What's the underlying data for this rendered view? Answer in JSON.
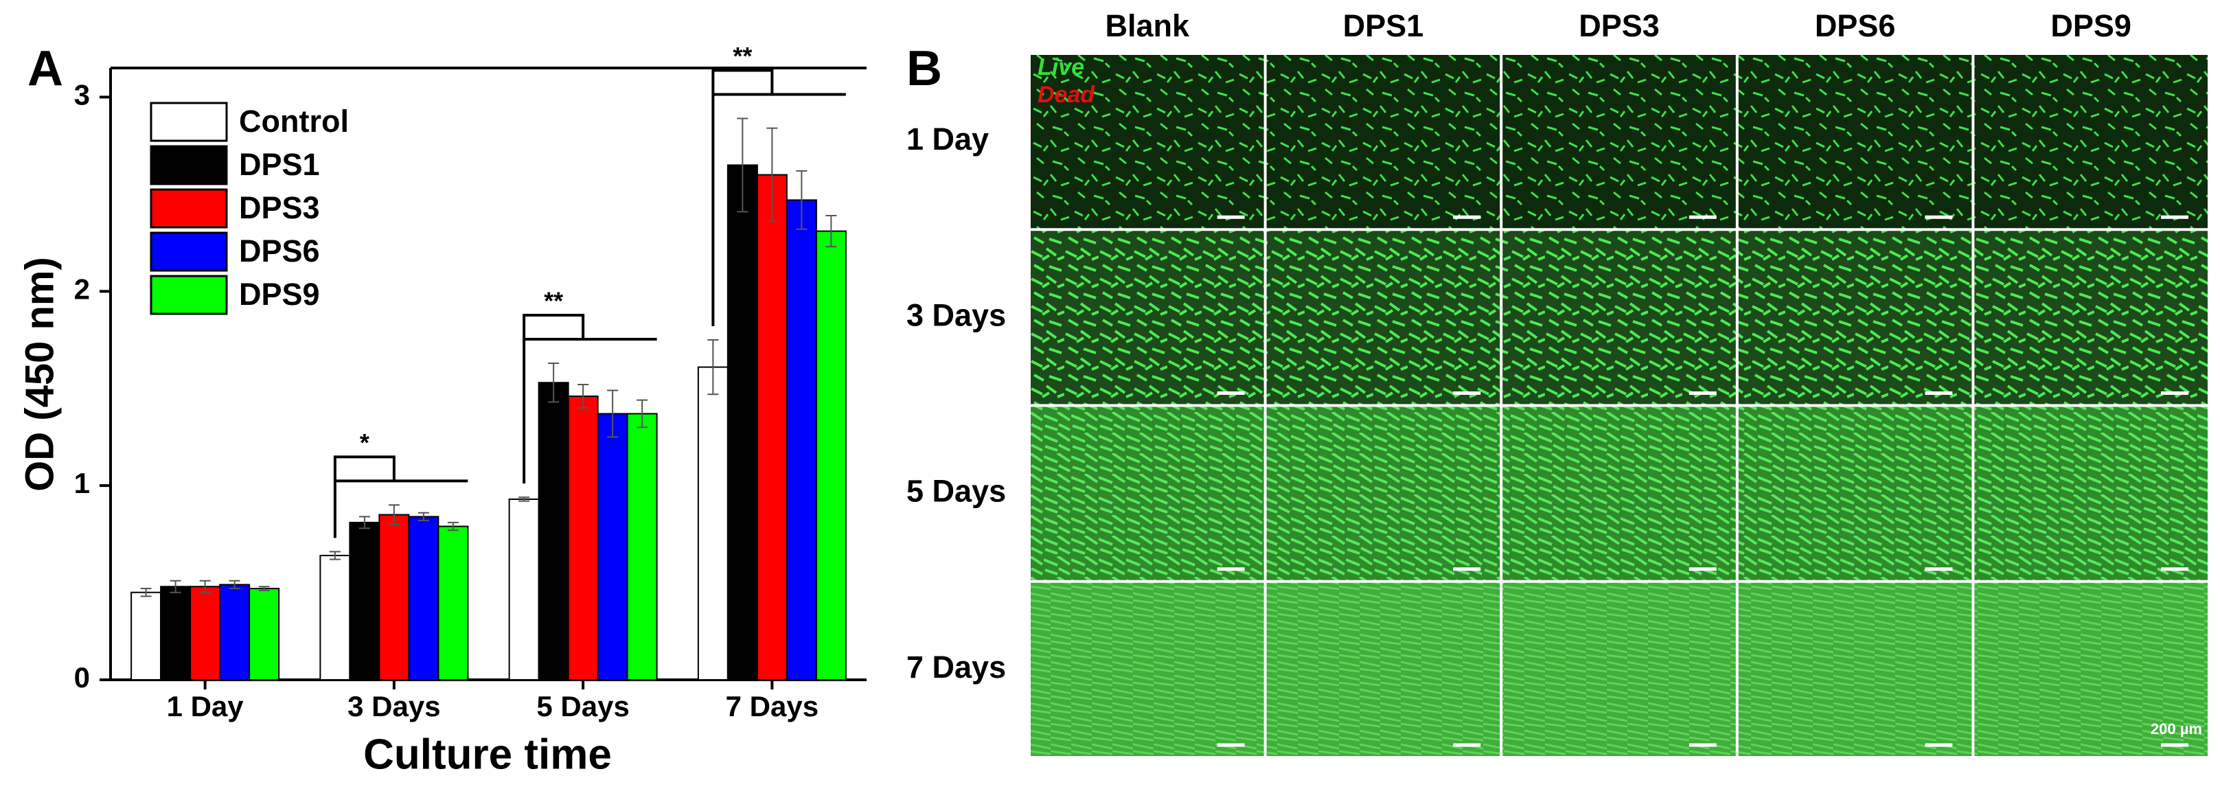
{
  "chart_data": {
    "type": "bar",
    "panel_label": "A",
    "x_label": "Culture time",
    "y_label": "OD (450 nm)",
    "categories": [
      "1 Day",
      "3 Days",
      "5 Days",
      "7 Days"
    ],
    "series": [
      {
        "name": "Control",
        "color": "#ffffff",
        "values": [
          0.45,
          0.64,
          0.93,
          1.61
        ],
        "errors": [
          0.02,
          0.02,
          0.01,
          0.14
        ]
      },
      {
        "name": "DPS1",
        "color": "#000000",
        "values": [
          0.48,
          0.81,
          1.53,
          2.65
        ],
        "errors": [
          0.03,
          0.03,
          0.1,
          0.24
        ]
      },
      {
        "name": "DPS3",
        "color": "#ff0000",
        "values": [
          0.48,
          0.85,
          1.46,
          2.6
        ],
        "errors": [
          0.03,
          0.05,
          0.06,
          0.24
        ]
      },
      {
        "name": "DPS6",
        "color": "#0000ff",
        "values": [
          0.49,
          0.84,
          1.37,
          2.47
        ],
        "errors": [
          0.02,
          0.02,
          0.12,
          0.15
        ]
      },
      {
        "name": "DPS9",
        "color": "#00ff00",
        "values": [
          0.47,
          0.79,
          1.37,
          2.31
        ],
        "errors": [
          0.01,
          0.02,
          0.07,
          0.08
        ]
      }
    ],
    "significance": [
      null,
      "*",
      "**",
      "**"
    ],
    "ylim": [
      0,
      3.15
    ],
    "yticks": [
      0,
      1,
      2,
      3
    ],
    "legend": "top-left",
    "grid": false
  },
  "panel_b": {
    "label": "B",
    "columns": [
      "Blank",
      "DPS1",
      "DPS3",
      "DPS6",
      "DPS9"
    ],
    "rows": [
      "1 Day",
      "3 Days",
      "5 Days",
      "7 Days"
    ],
    "stain_live": "Live",
    "stain_dead": "Dead",
    "scale_bar": "200 µm"
  }
}
